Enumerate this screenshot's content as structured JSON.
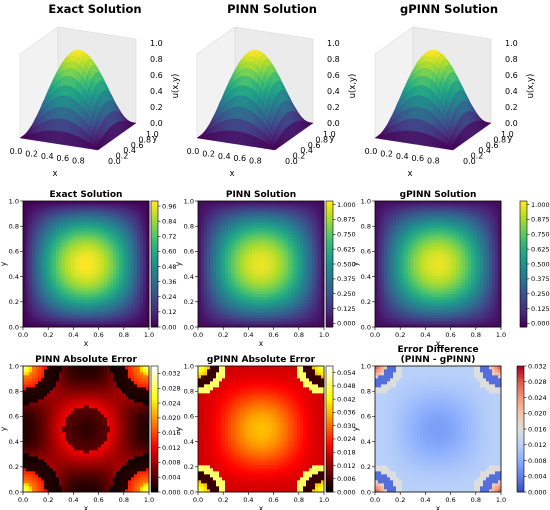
{
  "chart_data": [
    {
      "type": "surface3d",
      "title": "Exact Solution",
      "xlabel": "x",
      "ylabel": "y",
      "zlabel": "u(x,y)",
      "xticks": [
        "0.0",
        "0.2",
        "0.4",
        "0.6",
        "0.8"
      ],
      "yticks": [
        "0.0",
        "0.2",
        "0.4",
        "0.6",
        "0.8",
        "1.0"
      ],
      "zticks": [
        "0.0",
        "0.2",
        "0.4",
        "0.6",
        "0.8",
        "1.0"
      ],
      "function": "sin(pi*x)*sin(pi*y)",
      "zlim": [
        0,
        1
      ]
    },
    {
      "type": "surface3d",
      "title": "PINN Solution",
      "xlabel": "x",
      "ylabel": "y",
      "zlabel": "u(x,y)",
      "xticks": [
        "0.0",
        "0.2",
        "0.4",
        "0.6",
        "0.8"
      ],
      "yticks": [
        "0.0",
        "0.2",
        "0.4",
        "0.6",
        "0.8",
        "1.0"
      ],
      "zticks": [
        "0.0",
        "0.2",
        "0.4",
        "0.6",
        "0.8",
        "1.0"
      ],
      "function": "sin(pi*x)*sin(pi*y)",
      "zlim": [
        0,
        1
      ]
    },
    {
      "type": "surface3d",
      "title": "gPINN Solution",
      "xlabel": "x",
      "ylabel": "y",
      "zlabel": "u(x,y)",
      "xticks": [
        "0.0",
        "0.2",
        "0.4",
        "0.6",
        "0.8"
      ],
      "yticks": [
        "0.0",
        "0.2",
        "0.4",
        "0.6",
        "0.8",
        "1.0"
      ],
      "zticks": [
        "0.0",
        "0.2",
        "0.4",
        "0.6",
        "0.8",
        "1.0"
      ],
      "function": "sin(pi*x)*sin(pi*y)",
      "zlim": [
        0,
        1
      ]
    },
    {
      "type": "heatmap",
      "title": "Exact Solution",
      "xlabel": "x",
      "ylabel": "y",
      "xticks": [
        "0.0",
        "0.2",
        "0.4",
        "0.6",
        "0.8",
        "1.0"
      ],
      "yticks": [
        "0.0",
        "0.2",
        "0.4",
        "0.6",
        "0.8",
        "1.0"
      ],
      "colormap": "viridis",
      "colorbar_ticks": [
        "0.00",
        "0.12",
        "0.24",
        "0.36",
        "0.48",
        "0.60",
        "0.72",
        "0.84",
        "0.96"
      ],
      "clim": [
        0,
        1.0
      ],
      "function": "sin(pi*x)*sin(pi*y)"
    },
    {
      "type": "heatmap",
      "title": "PINN Solution",
      "xlabel": "x",
      "ylabel": "y",
      "xticks": [
        "0.0",
        "0.2",
        "0.4",
        "0.6",
        "0.8",
        "1.0"
      ],
      "yticks": [
        "0.0",
        "0.2",
        "0.4",
        "0.6",
        "0.8",
        "1.0"
      ],
      "colormap": "viridis",
      "colorbar_ticks": [
        "0.000",
        "0.125",
        "0.250",
        "0.375",
        "0.500",
        "0.625",
        "0.750",
        "0.875",
        "1.000"
      ],
      "clim": [
        -0.03,
        1.03
      ],
      "function": "sin(pi*x)*sin(pi*y)"
    },
    {
      "type": "heatmap",
      "title": "gPINN Solution",
      "xlabel": "x",
      "ylabel": "y",
      "xticks": [
        "0.0",
        "0.2",
        "0.4",
        "0.6",
        "0.8",
        "1.0"
      ],
      "yticks": [
        "0.0",
        "0.2",
        "0.4",
        "0.6",
        "0.8",
        "1.0"
      ],
      "colormap": "viridis",
      "colorbar_ticks": [
        "0.000",
        "0.125",
        "0.250",
        "0.375",
        "0.500",
        "0.625",
        "0.750",
        "0.875",
        "1.000"
      ],
      "clim": [
        -0.03,
        1.03
      ],
      "function": "sin(pi*x)*sin(pi*y)"
    },
    {
      "type": "heatmap",
      "title": "PINN Absolute Error",
      "xlabel": "x",
      "ylabel": "y",
      "xticks": [
        "0.0",
        "0.2",
        "0.4",
        "0.6",
        "0.8",
        "1.0"
      ],
      "yticks": [
        "0.0",
        "0.2",
        "0.4",
        "0.6",
        "0.8",
        "1.0"
      ],
      "colormap": "hot",
      "colorbar_ticks": [
        "0.000",
        "0.004",
        "0.008",
        "0.012",
        "0.016",
        "0.020",
        "0.024",
        "0.028",
        "0.032"
      ],
      "clim": [
        0,
        0.034
      ]
    },
    {
      "type": "heatmap",
      "title": "gPINN Absolute Error",
      "xlabel": "x",
      "ylabel": "y",
      "xticks": [
        "0.0",
        "0.2",
        "0.4",
        "0.6",
        "0.8",
        "1.0"
      ],
      "yticks": [
        "0.0",
        "0.2",
        "0.4",
        "0.6",
        "0.8",
        "1.0"
      ],
      "colormap": "hot",
      "colorbar_ticks": [
        "0.000",
        "0.006",
        "0.012",
        "0.018",
        "0.024",
        "0.030",
        "0.036",
        "0.042",
        "0.048",
        "0.054"
      ],
      "clim": [
        0,
        0.057
      ]
    },
    {
      "type": "heatmap",
      "title": "Error Difference\n(PINN - gPINN)",
      "xlabel": "x",
      "ylabel": "y",
      "xticks": [
        "0.0",
        "0.2",
        "0.4",
        "0.6",
        "0.8",
        "1.0"
      ],
      "yticks": [
        "0.0",
        "0.2",
        "0.4",
        "0.6",
        "0.8",
        "1.0"
      ],
      "colormap": "coolwarm",
      "colorbar_ticks": [
        "0.000",
        "0.004",
        "0.008",
        "0.012",
        "0.016",
        "0.020",
        "0.024",
        "0.028",
        "0.032"
      ],
      "clim": [
        0,
        0.032
      ]
    }
  ]
}
